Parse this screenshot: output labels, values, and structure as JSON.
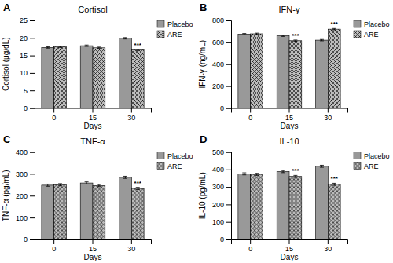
{
  "chart_data": [
    {
      "type": "bar",
      "title": "Cortisol",
      "xlabel": "Days",
      "ylabel": "Cortisol (μg/dL)",
      "categories": [
        "0",
        "15",
        "30"
      ],
      "series": [
        {
          "name": "Placebo",
          "color": "#999999",
          "values": [
            17.3,
            17.8,
            19.9
          ],
          "errors": [
            0.2,
            0.2,
            0.2
          ]
        },
        {
          "name": "ARE",
          "color": "#bbbbbb",
          "values": [
            17.5,
            17.2,
            16.6
          ],
          "errors": [
            0.2,
            0.2,
            0.2
          ]
        }
      ],
      "ylim": [
        0,
        25
      ],
      "yticks": [
        0,
        5,
        10,
        15,
        20,
        25
      ],
      "grid": false,
      "legend": "upper right",
      "annotations": [
        {
          "text": "A"
        },
        {
          "text": "***",
          "series": "ARE",
          "category": "30"
        }
      ]
    },
    {
      "type": "bar",
      "title": "IFN-γ",
      "xlabel": "Days",
      "ylabel": "IFN-γ (ng/mL)",
      "categories": [
        "0",
        "15",
        "30"
      ],
      "series": [
        {
          "name": "Placebo",
          "color": "#999999",
          "values": [
            675,
            660,
            620
          ],
          "errors": [
            6,
            6,
            6
          ]
        },
        {
          "name": "ARE",
          "color": "#bbbbbb",
          "values": [
            678,
            615,
            720
          ],
          "errors": [
            6,
            6,
            6
          ]
        }
      ],
      "ylim": [
        0,
        800
      ],
      "yticks": [
        0,
        200,
        400,
        600,
        800
      ],
      "grid": false,
      "legend": "upper right",
      "annotations": [
        {
          "text": "B"
        },
        {
          "text": "***",
          "series": "ARE",
          "category": "15"
        },
        {
          "text": "***",
          "series": "ARE",
          "category": "30"
        }
      ]
    },
    {
      "type": "bar",
      "title": "TNF-α",
      "xlabel": "Days",
      "ylabel": "TNF-α (pg/mL)",
      "categories": [
        "0",
        "15",
        "30"
      ],
      "series": [
        {
          "name": "Placebo",
          "color": "#999999",
          "values": [
            248,
            258,
            284
          ],
          "errors": [
            5,
            5,
            5
          ]
        },
        {
          "name": "ARE",
          "color": "#bbbbbb",
          "values": [
            250,
            246,
            233
          ],
          "errors": [
            5,
            5,
            5
          ]
        }
      ],
      "ylim": [
        0,
        400
      ],
      "yticks": [
        0,
        100,
        200,
        300,
        400
      ],
      "grid": false,
      "legend": "upper right",
      "annotations": [
        {
          "text": "C"
        },
        {
          "text": "***",
          "series": "ARE",
          "category": "30"
        }
      ]
    },
    {
      "type": "bar",
      "title": "IL-10",
      "xlabel": "Days",
      "ylabel": "IL-10 (pg/mL)",
      "categories": [
        "0",
        "15",
        "30"
      ],
      "series": [
        {
          "name": "Placebo",
          "color": "#999999",
          "values": [
            375,
            388,
            418
          ],
          "errors": [
            6,
            6,
            6
          ]
        },
        {
          "name": "ARE",
          "color": "#bbbbbb",
          "values": [
            372,
            360,
            315
          ],
          "errors": [
            6,
            6,
            6
          ]
        }
      ],
      "ylim": [
        0,
        500
      ],
      "yticks": [
        0,
        100,
        200,
        300,
        400,
        500
      ],
      "grid": false,
      "legend": "upper right",
      "annotations": [
        {
          "text": "D"
        },
        {
          "text": "***",
          "series": "ARE",
          "category": "15"
        },
        {
          "text": "***",
          "series": "ARE",
          "category": "30"
        }
      ]
    }
  ]
}
